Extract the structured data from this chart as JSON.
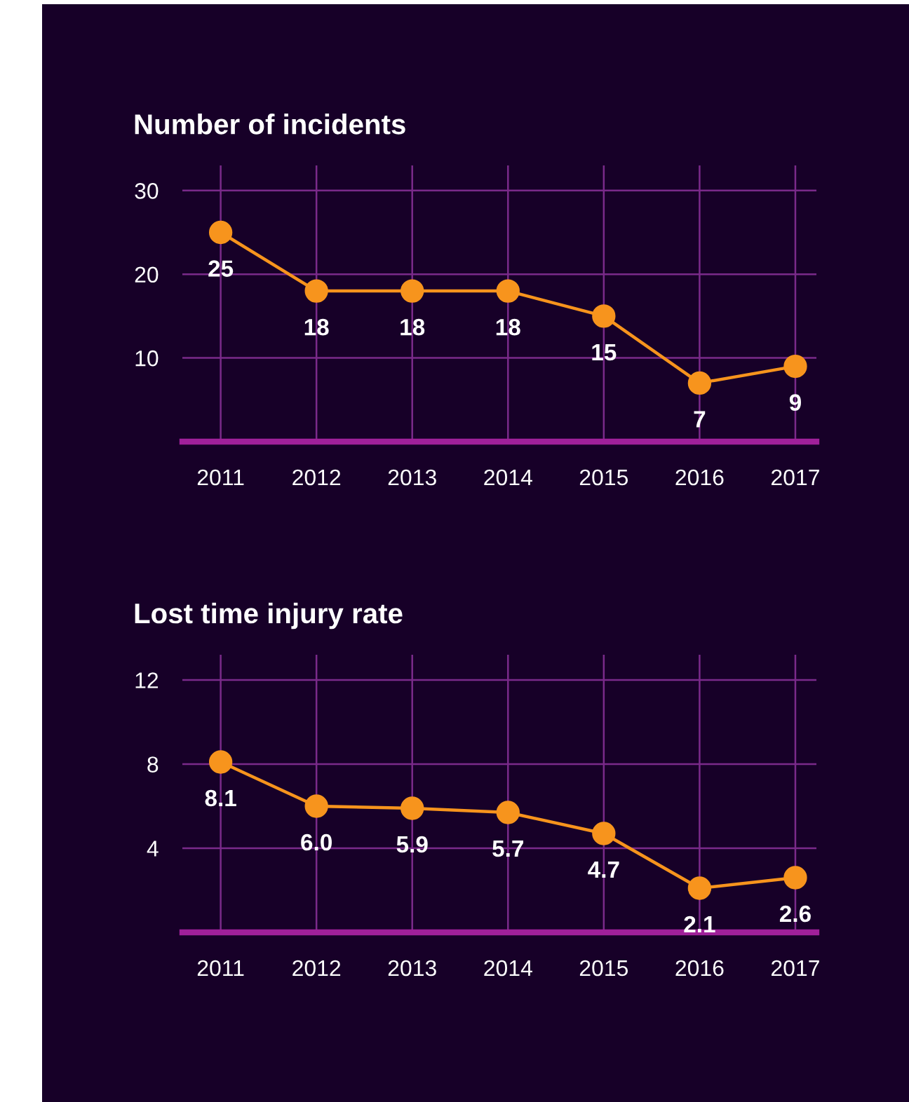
{
  "chart_data": [
    {
      "type": "line",
      "title": "Number of incidents",
      "categories": [
        "2011",
        "2012",
        "2013",
        "2014",
        "2015",
        "2016",
        "2017"
      ],
      "series": [
        {
          "color": "#f7941d",
          "values": [
            25,
            18,
            18,
            18,
            15,
            7,
            9
          ]
        }
      ],
      "ylim": [
        0,
        33
      ],
      "yticks": [
        10,
        20,
        30
      ],
      "grid": true,
      "marker": "circle",
      "line_style": "solid",
      "data_labels": true
    },
    {
      "type": "line",
      "title": "Lost time injury rate",
      "categories": [
        "2011",
        "2012",
        "2013",
        "2014",
        "2015",
        "2016",
        "2017"
      ],
      "series": [
        {
          "color": "#f7941d",
          "values": [
            8.1,
            6.0,
            5.9,
            5.7,
            4.7,
            2.1,
            2.6
          ],
          "value_labels": [
            "8.1",
            "6.0",
            "5.9",
            "5.7",
            "4.7",
            "2.1",
            "2.6"
          ]
        }
      ],
      "ylim": [
        0,
        13.2
      ],
      "yticks": [
        4,
        8,
        12
      ],
      "grid": true,
      "marker": "circle",
      "line_style": "solid"
    }
  ]
}
